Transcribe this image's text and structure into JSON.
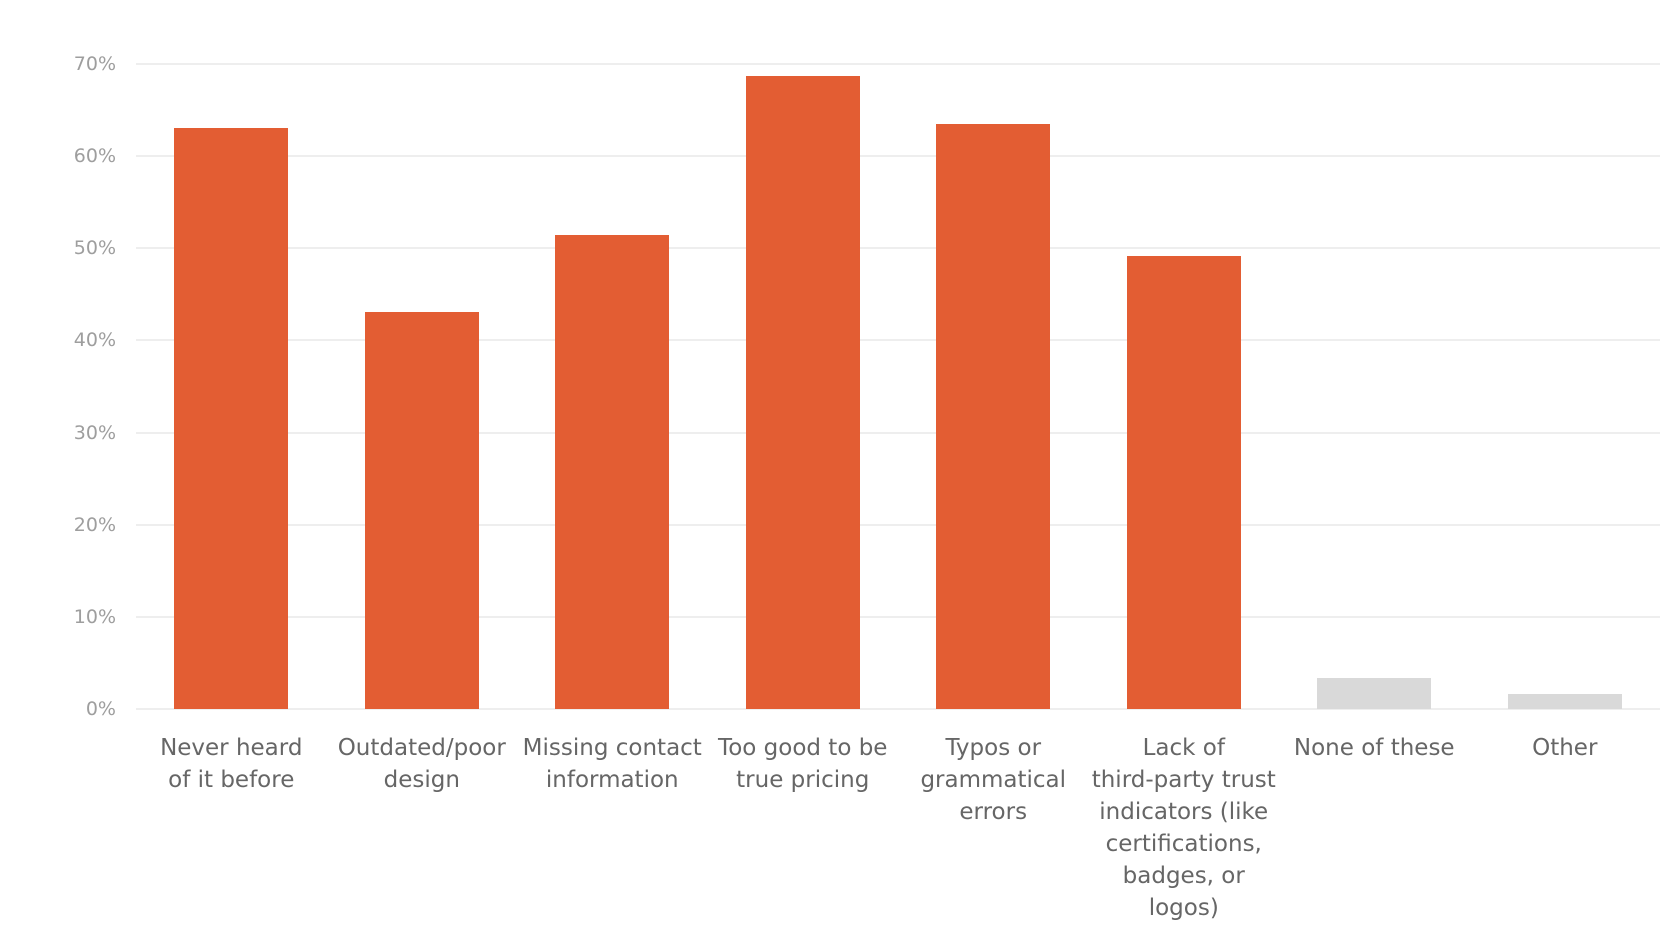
{
  "chart_data": {
    "type": "bar",
    "title": "",
    "xlabel": "",
    "ylabel": "",
    "ylim": [
      0,
      70
    ],
    "yticks": [
      "0%",
      "10%",
      "20%",
      "30%",
      "40%",
      "50%",
      "60%",
      "70%"
    ],
    "grid": true,
    "legend": null,
    "categories": [
      "Never heard of it before",
      "Outdated/poor design",
      "Missing contact information",
      "Too good to be true pricing",
      "Typos or grammatical errors",
      "Lack of third-party trust indicators (like certifications, badges, or logos)",
      "None of these",
      "Other"
    ],
    "category_labels_wrapped": [
      "Never heard\nof it before",
      "Outdated/poor\ndesign",
      "Missing contact\ninformation",
      "Too good to be\ntrue pricing",
      "Typos or\ngrammatical\nerrors",
      "Lack of\nthird-party trust\nindicators (like\ncertifications,\nbadges, or logos)",
      "None of these",
      "Other"
    ],
    "values": [
      63.1,
      43.1,
      51.4,
      68.7,
      63.5,
      49.2,
      3.4,
      1.6
    ],
    "unit": "%",
    "colors": [
      "#e35d33",
      "#e35d33",
      "#e35d33",
      "#e35d33",
      "#e35d33",
      "#e35d33",
      "#d9d9d9",
      "#d9d9d9"
    ]
  }
}
